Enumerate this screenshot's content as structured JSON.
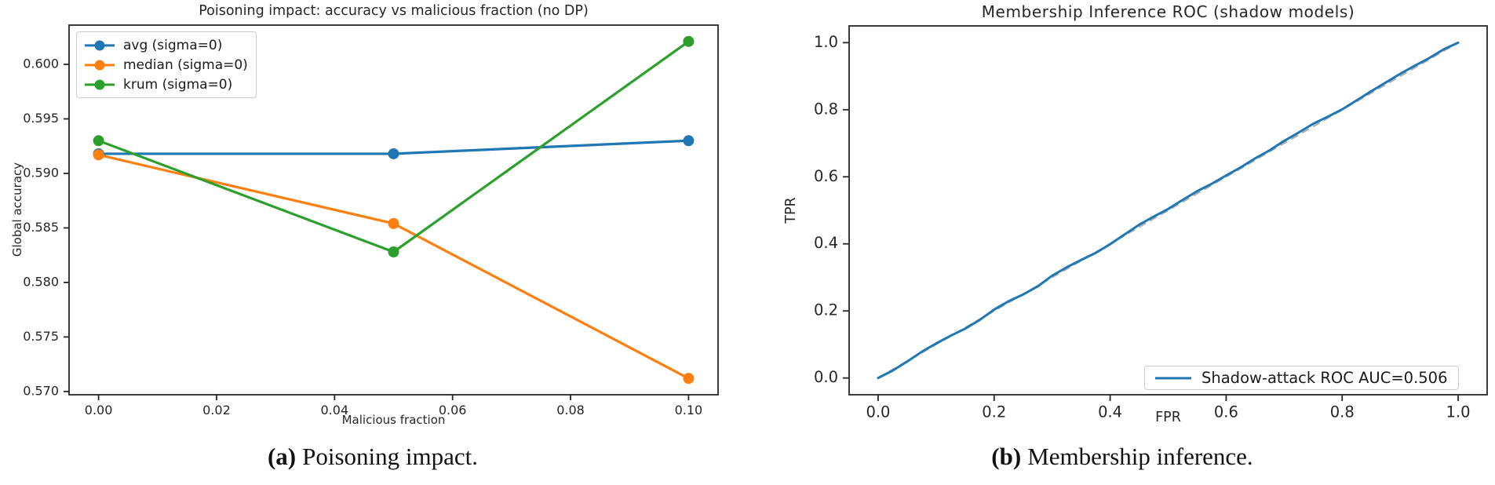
{
  "page": {
    "colors": {
      "background": "#ffffff",
      "text": "#262626",
      "spine": "#262626"
    }
  },
  "figure": {
    "captions": {
      "a": {
        "marker": "(a)",
        "text": "Poisoning impact."
      },
      "b": {
        "marker": "(b)",
        "text": "Membership inference."
      }
    }
  },
  "chart_data": [
    {
      "id": "poisoning",
      "type": "line",
      "title": "Poisoning impact: accuracy vs malicious fraction (no DP)",
      "xlabel": "Malicious fraction",
      "ylabel": "Global accuracy",
      "x": [
        0.0,
        0.05,
        0.1
      ],
      "series": [
        {
          "name": "avg (sigma=0)",
          "color": "#1f77b4",
          "marker": "circle",
          "values": [
            0.5918,
            0.5918,
            0.593
          ]
        },
        {
          "name": "median (sigma=0)",
          "color": "#ff7f0e",
          "marker": "circle",
          "values": [
            0.5917,
            0.5854,
            0.5712
          ]
        },
        {
          "name": "krum (sigma=0)",
          "color": "#2ca02c",
          "marker": "circle",
          "values": [
            0.593,
            0.5828,
            0.6021
          ]
        }
      ],
      "xlim": [
        -0.005,
        0.105
      ],
      "ylim": [
        0.5697,
        0.6036
      ],
      "xticks": [
        0.0,
        0.02,
        0.04,
        0.06,
        0.08,
        0.1
      ],
      "yticks": [
        0.57,
        0.575,
        0.58,
        0.585,
        0.59,
        0.595,
        0.6
      ],
      "xtick_decimals": 2,
      "ytick_decimals": 3,
      "grid": false,
      "legend_position": "upper left"
    },
    {
      "id": "roc",
      "type": "line",
      "title": "Membership Inference ROC (shadow models)",
      "xlabel": "FPR",
      "ylabel": "TPR",
      "auc": 0.506,
      "series": [
        {
          "name": "Shadow-attack ROC AUC=0.506",
          "color": "#1f77b4",
          "marker": "none",
          "points": [
            [
              0.0,
              0.0
            ],
            [
              0.025,
              0.022
            ],
            [
              0.05,
              0.049
            ],
            [
              0.075,
              0.078
            ],
            [
              0.1,
              0.103
            ],
            [
              0.125,
              0.126
            ],
            [
              0.15,
              0.147
            ],
            [
              0.175,
              0.173
            ],
            [
              0.2,
              0.204
            ],
            [
              0.225,
              0.229
            ],
            [
              0.25,
              0.249
            ],
            [
              0.275,
              0.273
            ],
            [
              0.3,
              0.305
            ],
            [
              0.325,
              0.33
            ],
            [
              0.35,
              0.352
            ],
            [
              0.375,
              0.373
            ],
            [
              0.4,
              0.399
            ],
            [
              0.425,
              0.428
            ],
            [
              0.45,
              0.457
            ],
            [
              0.475,
              0.481
            ],
            [
              0.5,
              0.504
            ],
            [
              0.525,
              0.531
            ],
            [
              0.55,
              0.557
            ],
            [
              0.575,
              0.579
            ],
            [
              0.6,
              0.604
            ],
            [
              0.625,
              0.628
            ],
            [
              0.65,
              0.655
            ],
            [
              0.675,
              0.679
            ],
            [
              0.7,
              0.707
            ],
            [
              0.725,
              0.732
            ],
            [
              0.75,
              0.758
            ],
            [
              0.775,
              0.779
            ],
            [
              0.8,
              0.801
            ],
            [
              0.825,
              0.828
            ],
            [
              0.85,
              0.855
            ],
            [
              0.875,
              0.881
            ],
            [
              0.9,
              0.907
            ],
            [
              0.925,
              0.931
            ],
            [
              0.95,
              0.954
            ],
            [
              0.975,
              0.98
            ],
            [
              1.0,
              1.0
            ]
          ]
        }
      ],
      "reference_line": {
        "style": "dashed",
        "color": "#b0b0b0",
        "from": [
          0,
          0
        ],
        "to": [
          1,
          1
        ]
      },
      "xlim": [
        -0.05,
        1.05
      ],
      "ylim": [
        -0.05,
        1.05
      ],
      "xticks": [
        0.0,
        0.2,
        0.4,
        0.6,
        0.8,
        1.0
      ],
      "yticks": [
        0.0,
        0.2,
        0.4,
        0.6,
        0.8,
        1.0
      ],
      "xtick_decimals": 1,
      "ytick_decimals": 1,
      "grid": false,
      "legend_position": "lower right"
    }
  ]
}
